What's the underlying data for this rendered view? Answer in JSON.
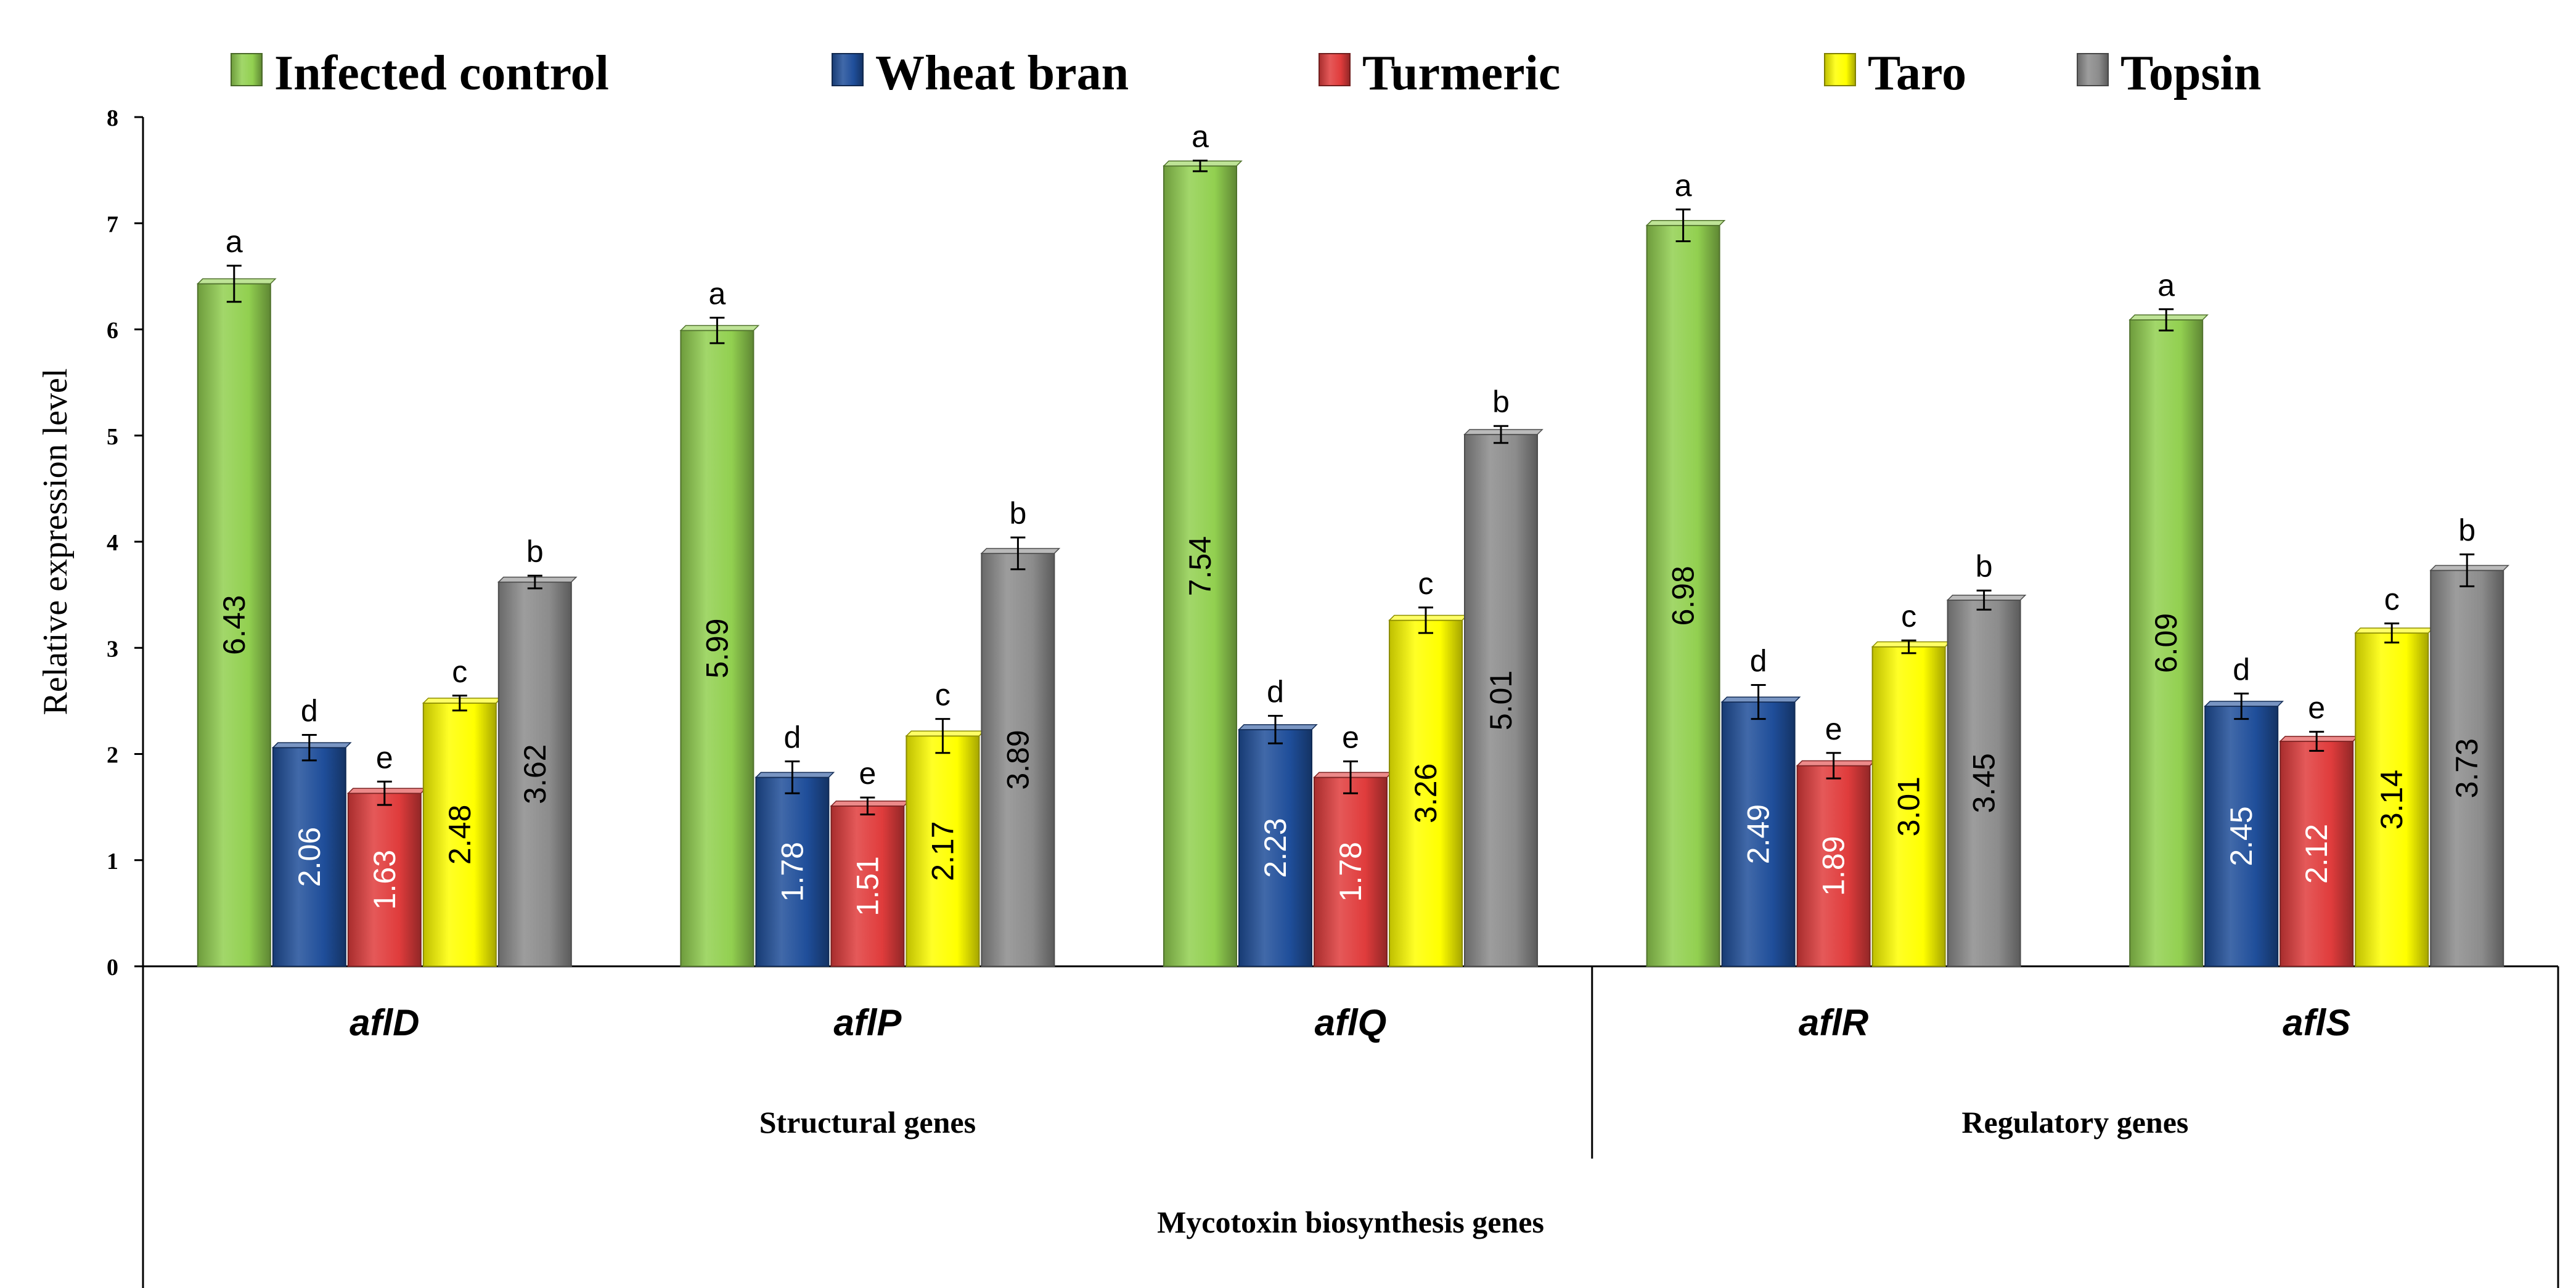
{
  "chart_data": {
    "type": "bar",
    "title": "",
    "ylabel": "Relative expression level",
    "xlabel": "Mycotoxin biosynthesis genes",
    "ylim": [
      0,
      8
    ],
    "yticks": [
      "0",
      "1",
      "2",
      "3",
      "4",
      "5",
      "6",
      "7",
      "8"
    ],
    "grid": false,
    "legend_position": "top",
    "categories": [
      "aflD",
      "aflP",
      "aflQ",
      "aflR",
      "aflS"
    ],
    "groups": [
      {
        "label": "Structural genes",
        "categories": [
          "aflD",
          "aflP",
          "aflQ"
        ]
      },
      {
        "label": "Regulatory genes",
        "categories": [
          "aflR",
          "aflS"
        ]
      }
    ],
    "series": [
      {
        "name": "Infected control",
        "color": "#92D050",
        "values": [
          6.43,
          5.99,
          7.54,
          6.98,
          6.09
        ],
        "labels": [
          "6.43",
          "5.99",
          "7.54",
          "6.98",
          "6.09"
        ],
        "errors": [
          0.17,
          0.12,
          0.05,
          0.15,
          0.1
        ],
        "letters": [
          "a",
          "a",
          "a",
          "a",
          "a"
        ]
      },
      {
        "name": "Wheat bran",
        "color": "#1F4E9A",
        "values": [
          2.06,
          1.78,
          2.23,
          2.49,
          2.45
        ],
        "labels": [
          "2.06",
          "1.78",
          "2.23",
          "2.49",
          "2.45"
        ],
        "errors": [
          0.12,
          0.15,
          0.13,
          0.16,
          0.12
        ],
        "letters": [
          "d",
          "d",
          "d",
          "d",
          "d"
        ]
      },
      {
        "name": "Turmeric",
        "color": "#E03C3C",
        "values": [
          1.63,
          1.51,
          1.78,
          1.89,
          2.12
        ],
        "labels": [
          "1.63",
          "1.51",
          "1.78",
          "1.89",
          "2.12"
        ],
        "errors": [
          0.11,
          0.08,
          0.15,
          0.12,
          0.09
        ],
        "letters": [
          "e",
          "e",
          "e",
          "e",
          "e"
        ]
      },
      {
        "name": "Taro",
        "color": "#FFFF00",
        "values": [
          2.48,
          2.17,
          3.26,
          3.01,
          3.14
        ],
        "labels": [
          "2.48",
          "2.17",
          "3.26",
          "3.01",
          "3.14"
        ],
        "errors": [
          0.07,
          0.16,
          0.12,
          0.06,
          0.09
        ],
        "letters": [
          "c",
          "c",
          "c",
          "c",
          "c"
        ]
      },
      {
        "name": "Topsin",
        "color": "#8C8C8C",
        "values": [
          3.62,
          3.89,
          5.01,
          3.45,
          3.73
        ],
        "labels": [
          "3.62",
          "3.89",
          "5.01",
          "3.45",
          "3.73"
        ],
        "errors": [
          0.06,
          0.15,
          0.08,
          0.09,
          0.15
        ],
        "letters": [
          "b",
          "b",
          "b",
          "b",
          "b"
        ]
      }
    ]
  }
}
